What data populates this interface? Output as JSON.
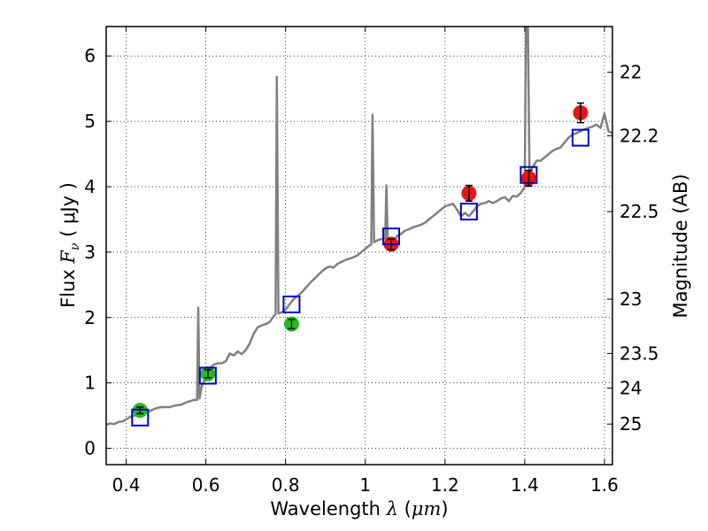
{
  "chart_data": {
    "type": "line",
    "xlabel": {
      "prefix": "Wavelength  ",
      "symbol": "λ",
      "unit_open": " (",
      "unit": "μm",
      "unit_close": ")"
    },
    "ylabel": {
      "prefix": "Flux  ",
      "symbol": "F",
      "subscript": "ν",
      "unit": "  ( μJy )"
    },
    "y2label": "Magnitude (AB)",
    "xlim": [
      0.35,
      1.62
    ],
    "ylim": [
      -0.25,
      6.45
    ],
    "grid": true,
    "x_ticks": [
      0.4,
      0.6,
      0.8,
      1.0,
      1.2,
      1.4,
      1.6
    ],
    "x_tick_labels": [
      "0.4",
      "0.6",
      "0.8",
      "1",
      "1.2",
      "1.4",
      "1.6"
    ],
    "y_ticks": [
      0,
      1,
      2,
      3,
      4,
      5,
      6
    ],
    "y_tick_labels": [
      "0",
      "1",
      "2",
      "3",
      "4",
      "5",
      "6"
    ],
    "y2_ticks": [
      {
        "label": "22",
        "flux": 5.75
      },
      {
        "label": "22.2",
        "flux": 4.78
      },
      {
        "label": "22.5",
        "flux": 3.62
      },
      {
        "label": "23",
        "flux": 2.28
      },
      {
        "label": "23.5",
        "flux": 1.45
      },
      {
        "label": "24",
        "flux": 0.92
      },
      {
        "label": "25",
        "flux": 0.37
      }
    ],
    "spectrum_color": "#808080",
    "spectrum": [
      [
        0.35,
        0.36
      ],
      [
        0.36,
        0.38
      ],
      [
        0.37,
        0.37
      ],
      [
        0.38,
        0.4
      ],
      [
        0.39,
        0.41
      ],
      [
        0.4,
        0.44
      ],
      [
        0.41,
        0.48
      ],
      [
        0.42,
        0.5
      ],
      [
        0.43,
        0.53
      ],
      [
        0.44,
        0.55
      ],
      [
        0.45,
        0.56
      ],
      [
        0.46,
        0.57
      ],
      [
        0.47,
        0.6
      ],
      [
        0.48,
        0.62
      ],
      [
        0.49,
        0.63
      ],
      [
        0.5,
        0.63
      ],
      [
        0.51,
        0.63
      ],
      [
        0.52,
        0.65
      ],
      [
        0.53,
        0.66
      ],
      [
        0.54,
        0.67
      ],
      [
        0.55,
        0.7
      ],
      [
        0.56,
        0.72
      ],
      [
        0.57,
        0.74
      ],
      [
        0.578,
        0.74
      ],
      [
        0.581,
        2.15
      ],
      [
        0.584,
        0.76
      ],
      [
        0.59,
        0.95
      ],
      [
        0.6,
        1.1
      ],
      [
        0.61,
        1.22
      ],
      [
        0.62,
        1.28
      ],
      [
        0.63,
        1.3
      ],
      [
        0.64,
        1.3
      ],
      [
        0.65,
        1.33
      ],
      [
        0.66,
        1.45
      ],
      [
        0.67,
        1.42
      ],
      [
        0.68,
        1.48
      ],
      [
        0.69,
        1.44
      ],
      [
        0.7,
        1.5
      ],
      [
        0.71,
        1.6
      ],
      [
        0.72,
        1.75
      ],
      [
        0.73,
        1.85
      ],
      [
        0.74,
        1.88
      ],
      [
        0.75,
        1.9
      ],
      [
        0.76,
        1.93
      ],
      [
        0.77,
        2.02
      ],
      [
        0.775,
        2.05
      ],
      [
        0.778,
        5.68
      ],
      [
        0.782,
        2.06
      ],
      [
        0.79,
        2.08
      ],
      [
        0.8,
        2.12
      ],
      [
        0.81,
        2.2
      ],
      [
        0.82,
        2.28
      ],
      [
        0.83,
        2.33
      ],
      [
        0.84,
        2.38
      ],
      [
        0.85,
        2.45
      ],
      [
        0.86,
        2.52
      ],
      [
        0.87,
        2.58
      ],
      [
        0.88,
        2.64
      ],
      [
        0.89,
        2.7
      ],
      [
        0.9,
        2.75
      ],
      [
        0.91,
        2.78
      ],
      [
        0.92,
        2.76
      ],
      [
        0.93,
        2.82
      ],
      [
        0.94,
        2.85
      ],
      [
        0.95,
        2.88
      ],
      [
        0.96,
        2.9
      ],
      [
        0.97,
        2.92
      ],
      [
        0.98,
        2.95
      ],
      [
        0.99,
        3.0
      ],
      [
        1.0,
        3.05
      ],
      [
        1.01,
        3.1
      ],
      [
        1.015,
        3.12
      ],
      [
        1.018,
        5.1
      ],
      [
        1.022,
        3.15
      ],
      [
        1.03,
        3.18
      ],
      [
        1.04,
        3.2
      ],
      [
        1.05,
        3.21
      ],
      [
        1.053,
        4.02
      ],
      [
        1.056,
        3.22
      ],
      [
        1.06,
        3.2
      ],
      [
        1.07,
        3.12
      ],
      [
        1.08,
        3.25
      ],
      [
        1.09,
        3.28
      ],
      [
        1.1,
        3.33
      ],
      [
        1.11,
        3.35
      ],
      [
        1.12,
        3.38
      ],
      [
        1.13,
        3.4
      ],
      [
        1.14,
        3.42
      ],
      [
        1.15,
        3.45
      ],
      [
        1.16,
        3.5
      ],
      [
        1.17,
        3.55
      ],
      [
        1.18,
        3.6
      ],
      [
        1.19,
        3.65
      ],
      [
        1.2,
        3.7
      ],
      [
        1.21,
        3.72
      ],
      [
        1.22,
        3.74
      ],
      [
        1.23,
        3.65
      ],
      [
        1.24,
        3.55
      ],
      [
        1.25,
        3.6
      ],
      [
        1.26,
        3.55
      ],
      [
        1.27,
        3.62
      ],
      [
        1.28,
        3.7
      ],
      [
        1.29,
        3.74
      ],
      [
        1.3,
        3.75
      ],
      [
        1.31,
        3.78
      ],
      [
        1.32,
        3.75
      ],
      [
        1.33,
        3.78
      ],
      [
        1.34,
        3.82
      ],
      [
        1.35,
        3.84
      ],
      [
        1.36,
        3.78
      ],
      [
        1.37,
        3.86
      ],
      [
        1.38,
        3.85
      ],
      [
        1.39,
        3.9
      ],
      [
        1.4,
        4.0
      ],
      [
        1.403,
        6.45
      ],
      [
        1.408,
        6.45
      ],
      [
        1.412,
        4.2
      ],
      [
        1.42,
        4.3
      ],
      [
        1.43,
        4.4
      ],
      [
        1.44,
        4.4
      ],
      [
        1.45,
        4.45
      ],
      [
        1.46,
        4.5
      ],
      [
        1.47,
        4.55
      ],
      [
        1.48,
        4.58
      ],
      [
        1.49,
        4.6
      ],
      [
        1.5,
        4.68
      ],
      [
        1.51,
        4.75
      ],
      [
        1.52,
        4.8
      ],
      [
        1.53,
        4.82
      ],
      [
        1.54,
        4.85
      ],
      [
        1.55,
        4.88
      ],
      [
        1.56,
        4.9
      ],
      [
        1.57,
        4.92
      ],
      [
        1.58,
        4.95
      ],
      [
        1.59,
        4.9
      ],
      [
        1.6,
        5.12
      ],
      [
        1.61,
        4.85
      ],
      [
        1.62,
        4.82
      ]
    ],
    "model_points": {
      "color": "#0000cc",
      "points": [
        [
          0.435,
          0.47
        ],
        [
          0.605,
          1.11
        ],
        [
          0.815,
          2.2
        ],
        [
          1.065,
          3.24
        ],
        [
          1.26,
          3.62
        ],
        [
          1.41,
          4.18
        ],
        [
          1.54,
          4.75
        ]
      ]
    },
    "green_points": {
      "color": "#22bb22",
      "points": [
        {
          "x": 0.435,
          "y": 0.58,
          "err": 0.05
        },
        {
          "x": 0.605,
          "y": 1.14,
          "err": 0.06
        },
        {
          "x": 0.815,
          "y": 1.9,
          "err": 0.07
        }
      ]
    },
    "red_points": {
      "color": "#ee1111",
      "points": [
        {
          "x": 1.065,
          "y": 3.12,
          "err": 0.08
        },
        {
          "x": 1.26,
          "y": 3.9,
          "err": 0.12
        },
        {
          "x": 1.41,
          "y": 4.13,
          "err": 0.12
        },
        {
          "x": 1.54,
          "y": 5.13,
          "err": 0.15
        }
      ]
    }
  }
}
